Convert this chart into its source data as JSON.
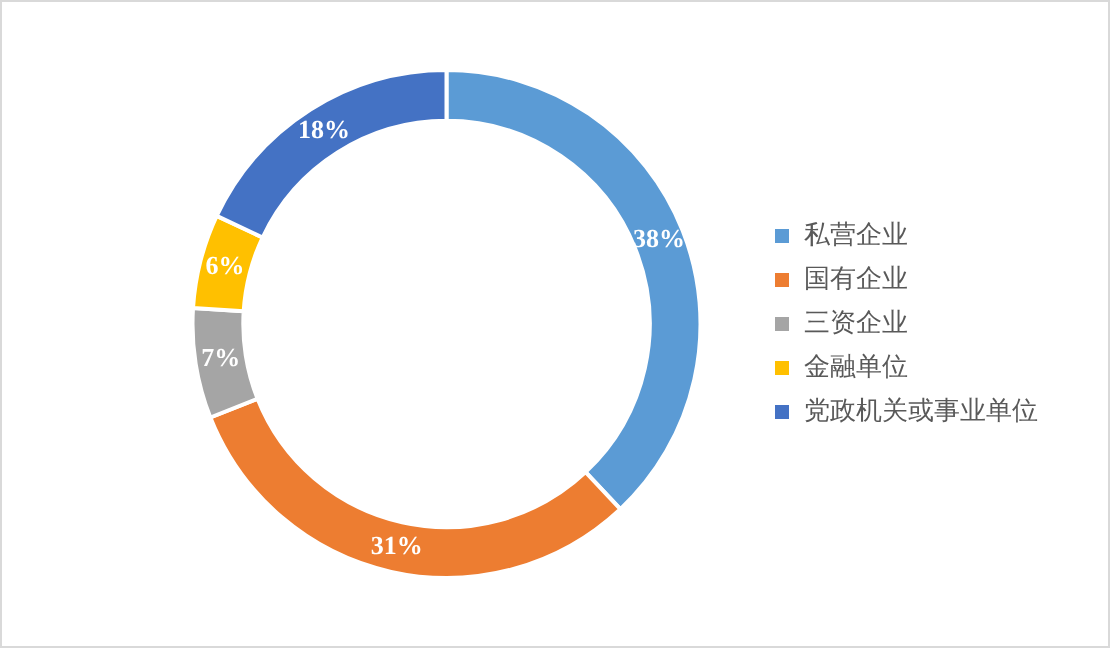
{
  "chart_data": {
    "type": "donut",
    "categories": [
      "私营企业",
      "国有企业",
      "三资企业",
      "金融单位",
      "党政机关或事业单位"
    ],
    "values": [
      38,
      31,
      7,
      6,
      18
    ],
    "colors": [
      "#5b9bd5",
      "#ed7d31",
      "#a5a5a5",
      "#ffc000",
      "#4472c4"
    ],
    "value_labels": [
      "38%",
      "31%",
      "7%",
      "6%",
      "18%"
    ],
    "legend": "right"
  }
}
